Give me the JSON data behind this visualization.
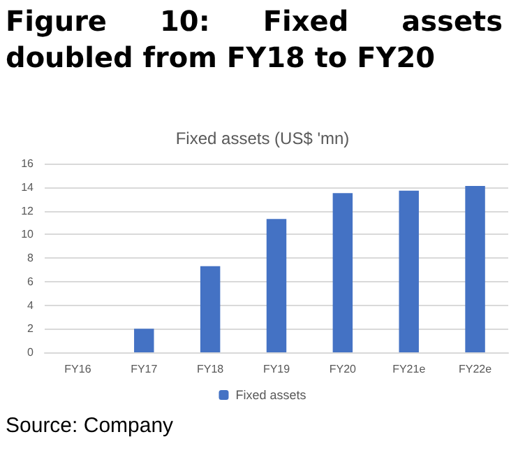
{
  "chart_data": {
    "type": "bar",
    "title": "Figure 10: Fixed assets doubled from FY18 to FY20",
    "subtitle": "Fixed assets (US$ 'mn)",
    "annotations": [
      "Source: Company"
    ],
    "categories": [
      "FY16",
      "FY17",
      "FY18",
      "FY19",
      "FY20",
      "FY21e",
      "FY22e"
    ],
    "series": [
      {
        "name": "Fixed assets",
        "color": "#4472c4",
        "values": [
          0,
          2.0,
          7.3,
          11.3,
          13.5,
          13.7,
          14.1
        ]
      }
    ],
    "ylim": [
      0,
      16
    ],
    "yticks": [
      0,
      2,
      4,
      6,
      8,
      10,
      12,
      14,
      16
    ],
    "grid": "y",
    "legend": "bottom"
  }
}
